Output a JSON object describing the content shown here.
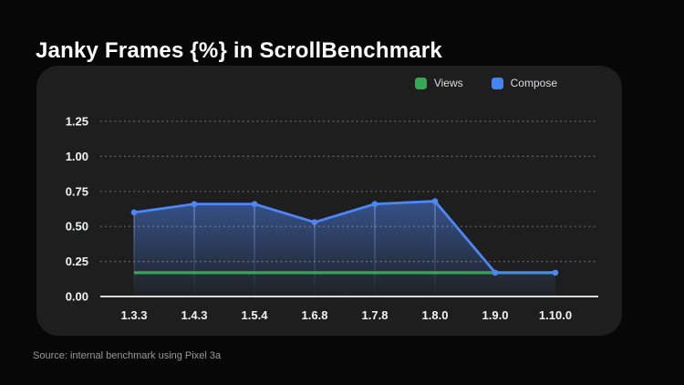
{
  "page": {
    "title": "Janky Frames {%} in ScrollBenchmark",
    "source_note": "Source: internal benchmark using Pixel 3a"
  },
  "legend": [
    {
      "label": "Views",
      "color": "#34a853"
    },
    {
      "label": "Compose",
      "color": "#4285f4"
    }
  ],
  "colors": {
    "background": "#070707",
    "card": "#1e1e1e",
    "title_text": "#ffffff",
    "tick_text": "#f1f3f4",
    "grid": "rgba(255,255,255,0.38)",
    "axis_line": "#d9d9d9",
    "views_green": "#34a853",
    "compose_blue": "#4e86f5",
    "legend_text": "#dadce0",
    "source_text": "#9a9a9a"
  },
  "chart_data": {
    "type": "line",
    "title": "Janky Frames {%} in ScrollBenchmark",
    "categories": [
      "1.3.3",
      "1.4.3",
      "1.5.4",
      "1.6.8",
      "1.7.8",
      "1.8.0",
      "1.9.0",
      "1.10.0"
    ],
    "series": [
      {
        "name": "Views",
        "color": "#34a853",
        "values": [
          0.17,
          0.17,
          0.17,
          0.17,
          0.17,
          0.17,
          0.17,
          0.17
        ],
        "markers": false,
        "area_fill": false
      },
      {
        "name": "Compose",
        "color": "#4e86f5",
        "values": [
          0.6,
          0.66,
          0.66,
          0.53,
          0.66,
          0.68,
          0.17,
          0.17
        ],
        "markers": true,
        "area_fill": true
      }
    ],
    "xlabel": "",
    "ylabel": "",
    "y_ticks": [
      0.0,
      0.25,
      0.5,
      0.75,
      1.0,
      1.25
    ],
    "ylim": [
      0,
      1.25
    ],
    "grid": "dotted-horizontal",
    "legend_position": "top-right",
    "note": "Green Views line is overlapped by blue Compose line from 1.9.0 onward"
  }
}
